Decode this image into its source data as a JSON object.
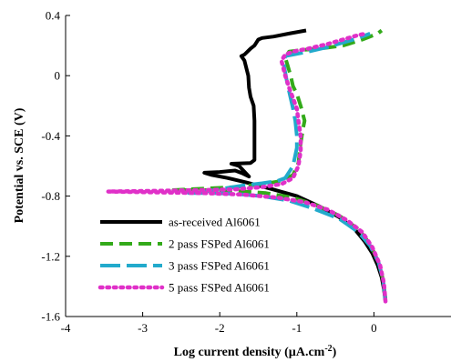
{
  "chart_data": {
    "type": "line",
    "title": "",
    "xlabel": "Log current density (µA.cm",
    "xlabel_sup": "-2",
    "xlabel_close": ")",
    "ylabel": "Potential vs. SCE (V)",
    "xlim": [
      -4,
      1
    ],
    "ylim": [
      -1.6,
      0.4
    ],
    "xticks": [
      "-4",
      "-3",
      "-2",
      "-1",
      "0"
    ],
    "yticks": [
      "0.4",
      "0",
      "-0.4",
      "-0.8",
      "-1.2",
      "-1.6"
    ],
    "grid": false,
    "legend_position": "bottom-left",
    "series": [
      {
        "name": "as-received Al6061",
        "color": "#000000",
        "style": "solid",
        "points": [
          [
            0.15,
            -1.5
          ],
          [
            0.13,
            -1.42
          ],
          [
            0.1,
            -1.34
          ],
          [
            0.05,
            -1.26
          ],
          [
            -0.02,
            -1.18
          ],
          [
            -0.12,
            -1.1
          ],
          [
            -0.25,
            -1.02
          ],
          [
            -0.45,
            -0.94
          ],
          [
            -0.7,
            -0.87
          ],
          [
            -1.0,
            -0.8
          ],
          [
            -1.35,
            -0.75
          ],
          [
            -1.65,
            -0.71
          ],
          [
            -1.9,
            -0.68
          ],
          [
            -2.1,
            -0.66
          ],
          [
            -2.2,
            -0.645
          ],
          [
            -2.0,
            -0.64
          ],
          [
            -1.8,
            -0.63
          ],
          [
            -1.7,
            -0.65
          ],
          [
            -1.62,
            -0.67
          ],
          [
            -1.75,
            -0.6
          ],
          [
            -1.85,
            -0.585
          ],
          [
            -1.6,
            -0.58
          ],
          [
            -1.55,
            -0.56
          ],
          [
            -1.55,
            -0.45
          ],
          [
            -1.55,
            -0.3
          ],
          [
            -1.56,
            -0.2
          ],
          [
            -1.6,
            -0.14
          ],
          [
            -1.62,
            -0.08
          ],
          [
            -1.63,
            0.0
          ],
          [
            -1.68,
            0.1
          ],
          [
            -1.72,
            0.13
          ],
          [
            -1.68,
            0.14
          ],
          [
            -1.6,
            0.18
          ],
          [
            -1.55,
            0.2
          ],
          [
            -1.5,
            0.24
          ],
          [
            -1.45,
            0.25
          ],
          [
            -1.3,
            0.26
          ],
          [
            -1.1,
            0.28
          ],
          [
            -0.88,
            0.3
          ]
        ]
      },
      {
        "name": "2 pass FSPed Al6061",
        "color": "#33aa1a",
        "style": "dash",
        "points": [
          [
            0.15,
            -1.48
          ],
          [
            0.12,
            -1.36
          ],
          [
            0.06,
            -1.24
          ],
          [
            -0.05,
            -1.12
          ],
          [
            -0.2,
            -1.02
          ],
          [
            -0.45,
            -0.93
          ],
          [
            -0.75,
            -0.86
          ],
          [
            -1.05,
            -0.81
          ],
          [
            -1.4,
            -0.78
          ],
          [
            -1.8,
            -0.765
          ],
          [
            -2.2,
            -0.76
          ],
          [
            -2.6,
            -0.76
          ],
          [
            -2.2,
            -0.75
          ],
          [
            -1.8,
            -0.74
          ],
          [
            -1.45,
            -0.72
          ],
          [
            -1.2,
            -0.7
          ],
          [
            -1.05,
            -0.66
          ],
          [
            -0.98,
            -0.58
          ],
          [
            -0.95,
            -0.45
          ],
          [
            -0.92,
            -0.35
          ],
          [
            -0.9,
            -0.3
          ],
          [
            -0.95,
            -0.2
          ],
          [
            -1.0,
            -0.12
          ],
          [
            -1.05,
            -0.07
          ],
          [
            -1.08,
            0.0
          ],
          [
            -1.12,
            0.07
          ],
          [
            -1.15,
            0.12
          ],
          [
            -1.1,
            0.16
          ],
          [
            -0.95,
            0.17
          ],
          [
            -0.7,
            0.18
          ],
          [
            -0.4,
            0.2
          ],
          [
            -0.15,
            0.24
          ],
          [
            0.05,
            0.28
          ],
          [
            0.1,
            0.3
          ]
        ]
      },
      {
        "name": "3 pass FSPed Al6061",
        "color": "#22aacc",
        "style": "longdash",
        "points": [
          [
            0.15,
            -1.5
          ],
          [
            0.12,
            -1.36
          ],
          [
            0.06,
            -1.24
          ],
          [
            -0.05,
            -1.13
          ],
          [
            -0.2,
            -1.04
          ],
          [
            -0.45,
            -0.95
          ],
          [
            -0.8,
            -0.88
          ],
          [
            -1.1,
            -0.83
          ],
          [
            -1.45,
            -0.8
          ],
          [
            -1.8,
            -0.785
          ],
          [
            -2.1,
            -0.78
          ],
          [
            -2.4,
            -0.78
          ],
          [
            -2.2,
            -0.77
          ],
          [
            -1.95,
            -0.75
          ],
          [
            -1.7,
            -0.73
          ],
          [
            -1.45,
            -0.715
          ],
          [
            -1.25,
            -0.7
          ],
          [
            -1.15,
            -0.68
          ],
          [
            -1.05,
            -0.6
          ],
          [
            -1.0,
            -0.48
          ],
          [
            -1.0,
            -0.4
          ],
          [
            -1.02,
            -0.3
          ],
          [
            -1.05,
            -0.22
          ],
          [
            -1.08,
            -0.15
          ],
          [
            -1.12,
            -0.06
          ],
          [
            -1.15,
            0.02
          ],
          [
            -1.17,
            0.08
          ],
          [
            -1.15,
            0.13
          ],
          [
            -1.05,
            0.14
          ],
          [
            -0.85,
            0.16
          ],
          [
            -0.6,
            0.19
          ],
          [
            -0.4,
            0.22
          ],
          [
            -0.2,
            0.25
          ],
          [
            -0.05,
            0.28
          ]
        ]
      },
      {
        "name": "5 pass FSPed Al6061",
        "color": "#e030c8",
        "style": "dot",
        "points": [
          [
            0.15,
            -1.5
          ],
          [
            0.13,
            -1.38
          ],
          [
            0.08,
            -1.26
          ],
          [
            -0.02,
            -1.14
          ],
          [
            -0.15,
            -1.04
          ],
          [
            -0.35,
            -0.96
          ],
          [
            -0.6,
            -0.89
          ],
          [
            -0.9,
            -0.84
          ],
          [
            -1.25,
            -0.81
          ],
          [
            -1.7,
            -0.79
          ],
          [
            -2.2,
            -0.78
          ],
          [
            -2.8,
            -0.775
          ],
          [
            -3.45,
            -0.77
          ],
          [
            -2.8,
            -0.765
          ],
          [
            -2.2,
            -0.76
          ],
          [
            -1.8,
            -0.755
          ],
          [
            -1.45,
            -0.74
          ],
          [
            -1.2,
            -0.72
          ],
          [
            -1.05,
            -0.68
          ],
          [
            -0.98,
            -0.6
          ],
          [
            -0.95,
            -0.5
          ],
          [
            -0.95,
            -0.4
          ],
          [
            -0.98,
            -0.3
          ],
          [
            -1.0,
            -0.22
          ],
          [
            -1.05,
            -0.15
          ],
          [
            -1.1,
            -0.08
          ],
          [
            -1.15,
            0.0
          ],
          [
            -1.18,
            0.06
          ],
          [
            -1.2,
            0.1
          ],
          [
            -1.15,
            0.14
          ],
          [
            -1.05,
            0.16
          ],
          [
            -0.85,
            0.18
          ],
          [
            -0.6,
            0.21
          ],
          [
            -0.4,
            0.24
          ],
          [
            -0.2,
            0.27
          ],
          [
            -0.1,
            0.28
          ]
        ]
      }
    ]
  }
}
